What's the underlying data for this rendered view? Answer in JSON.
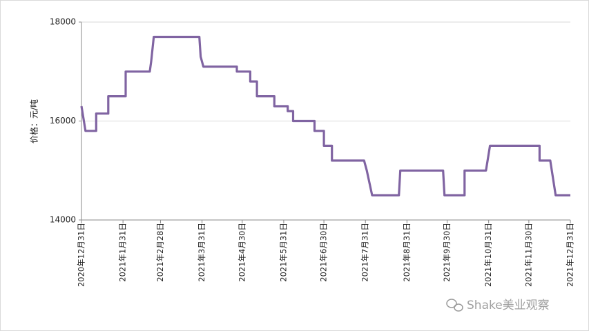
{
  "chart_data": {
    "type": "line",
    "y_label": "价格：元/吨",
    "watermark": "Shake美业观察",
    "x": [
      "2020-12-31",
      "2021-01-03",
      "2021-01-11",
      "2021-01-11",
      "2021-01-20",
      "2021-01-20",
      "2021-02-02",
      "2021-02-02",
      "2021-02-20",
      "2021-02-21",
      "2021-02-23",
      "2021-03-29",
      "2021-03-30",
      "2021-04-01",
      "2021-04-26",
      "2021-04-26",
      "2021-05-06",
      "2021-05-06",
      "2021-05-11",
      "2021-05-11",
      "2021-05-24",
      "2021-05-24",
      "2021-06-03",
      "2021-06-03",
      "2021-06-07",
      "2021-06-07",
      "2021-06-23",
      "2021-06-23",
      "2021-06-30",
      "2021-06-30",
      "2021-07-06",
      "2021-07-06",
      "2021-07-30",
      "2021-08-01",
      "2021-08-05",
      "2021-08-25",
      "2021-08-26",
      "2021-09-27",
      "2021-09-28",
      "2021-10-13",
      "2021-10-13",
      "2021-10-29",
      "2021-11-01",
      "2021-12-08",
      "2021-12-08",
      "2021-12-16",
      "2021-12-20",
      "2021-12-31"
    ],
    "series": [
      {
        "name": "价格",
        "color": "#8064a2",
        "values": [
          16300,
          15800,
          15800,
          16150,
          16150,
          16500,
          16500,
          17000,
          17000,
          17200,
          17700,
          17700,
          17300,
          17100,
          17100,
          17000,
          17000,
          16800,
          16800,
          16500,
          16500,
          16300,
          16300,
          16200,
          16200,
          16000,
          16000,
          15800,
          15800,
          15500,
          15500,
          15200,
          15200,
          15000,
          14500,
          14500,
          15000,
          15000,
          14500,
          14500,
          15000,
          15000,
          15500,
          15500,
          15200,
          15200,
          14500,
          14500
        ]
      }
    ],
    "xlim": [
      "2020-12-31",
      "2021-12-31"
    ],
    "xticks": [
      {
        "value": "2020-12-31",
        "label": "2020年12月31日"
      },
      {
        "value": "2021-01-31",
        "label": "2021年1月31日"
      },
      {
        "value": "2021-02-28",
        "label": "2021年2月28日"
      },
      {
        "value": "2021-03-31",
        "label": "2021年3月31日"
      },
      {
        "value": "2021-04-30",
        "label": "2021年4月30日"
      },
      {
        "value": "2021-05-31",
        "label": "2021年5月31日"
      },
      {
        "value": "2021-06-30",
        "label": "2021年6月30日"
      },
      {
        "value": "2021-07-31",
        "label": "2021年7月31日"
      },
      {
        "value": "2021-08-31",
        "label": "2021年8月31日"
      },
      {
        "value": "2021-09-30",
        "label": "2021年9月30日"
      },
      {
        "value": "2021-10-31",
        "label": "2021年10月31日"
      },
      {
        "value": "2021-11-30",
        "label": "2021年11月30日"
      },
      {
        "value": "2021-12-31",
        "label": "2021年12月31日"
      }
    ],
    "ylim": [
      14000,
      18000
    ],
    "yticks": [
      14000,
      16000,
      18000
    ],
    "grid": true
  }
}
